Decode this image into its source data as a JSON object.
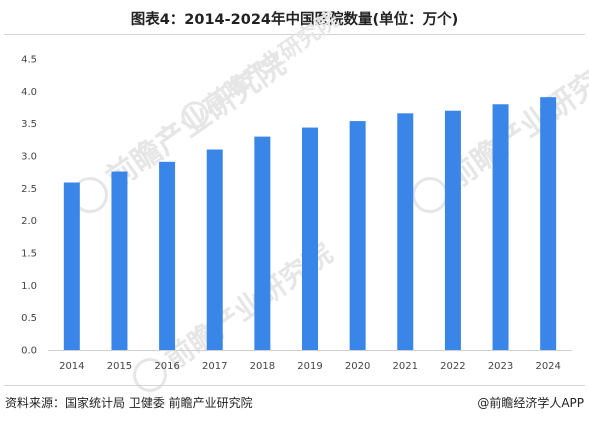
{
  "title": "图表4：2014-2024年中国医院数量(单位：万个)",
  "footer": {
    "source": "资料来源：国家统计局 卫健委 前瞻产业研究院",
    "credit": "@前瞻经济学人APP"
  },
  "watermark": {
    "text": "前瞻产业研究院"
  },
  "colors": {
    "bar": "#3a86e8",
    "axis": "#d0d0d0",
    "tick_text": "#444444",
    "divider": "#d4d4d4",
    "watermark": "#e6e6e6"
  },
  "chart_data": {
    "type": "bar",
    "categories": [
      "2014",
      "2015",
      "2016",
      "2017",
      "2018",
      "2019",
      "2020",
      "2021",
      "2022",
      "2023",
      "2024"
    ],
    "series": [
      {
        "values": [
          2.59,
          2.76,
          2.91,
          3.1,
          3.3,
          3.44,
          3.54,
          3.66,
          3.7,
          3.8,
          3.91
        ]
      }
    ],
    "title": "图表4：2014-2024年中国医院数量(单位：万个)",
    "xlabel": "",
    "ylabel": "",
    "ylim": [
      0,
      4.5
    ],
    "yticks": [
      "0.0",
      "0.5",
      "1.0",
      "1.5",
      "2.0",
      "2.5",
      "3.0",
      "3.5",
      "4.0",
      "4.5"
    ],
    "grid": false,
    "legend": "none"
  }
}
